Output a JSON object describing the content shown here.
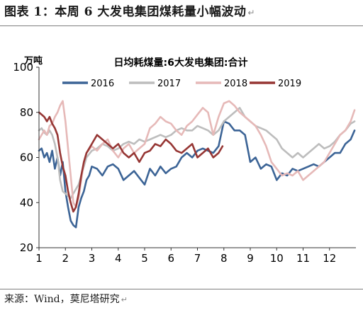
{
  "figure": {
    "label": "图表 1：本周 6 大发电集团煤耗量小幅波动",
    "source": "来源：Wind，莫尼塔研究",
    "paragraph_mark": "↵"
  },
  "chart_data": {
    "type": "line",
    "title": "日均耗煤量:6大发电集团:合计",
    "ylabel": "万吨",
    "xlabel": "",
    "ylim": [
      20,
      100
    ],
    "yticks": [
      20,
      40,
      60,
      80,
      100
    ],
    "xlim": [
      1,
      13
    ],
    "xticks": [
      1,
      2,
      3,
      4,
      5,
      6,
      7,
      8,
      9,
      10,
      11,
      12
    ],
    "grid": false,
    "legend_position": "top",
    "series": [
      {
        "name": "2016",
        "color": "#3c6496",
        "x": [
          1.0,
          1.1,
          1.2,
          1.3,
          1.4,
          1.5,
          1.6,
          1.7,
          1.8,
          1.9,
          2.0,
          2.1,
          2.2,
          2.3,
          2.4,
          2.5,
          2.6,
          2.7,
          2.8,
          2.9,
          3.0,
          3.2,
          3.4,
          3.6,
          3.8,
          4.0,
          4.2,
          4.4,
          4.6,
          4.8,
          5.0,
          5.2,
          5.4,
          5.6,
          5.8,
          6.0,
          6.2,
          6.4,
          6.6,
          6.8,
          7.0,
          7.2,
          7.4,
          7.6,
          7.8,
          8.0,
          8.2,
          8.4,
          8.6,
          8.8,
          9.0,
          9.2,
          9.4,
          9.6,
          9.8,
          10.0,
          10.2,
          10.4,
          10.6,
          10.8,
          11.0,
          11.2,
          11.4,
          11.6,
          11.8,
          12.0,
          12.2,
          12.4,
          12.6,
          12.8,
          12.95
        ],
        "values": [
          63,
          64,
          60,
          62,
          58,
          63,
          55,
          60,
          52,
          58,
          45,
          38,
          32,
          30,
          29,
          38,
          42,
          45,
          50,
          52,
          56,
          55,
          52,
          56,
          57,
          55,
          50,
          52,
          54,
          51,
          48,
          55,
          52,
          56,
          53,
          55,
          56,
          60,
          62,
          60,
          63,
          64,
          63,
          62,
          65,
          76,
          75,
          72,
          72,
          70,
          58,
          60,
          55,
          57,
          56,
          50,
          53,
          52,
          55,
          54,
          55,
          56,
          57,
          56,
          58,
          60,
          62,
          62,
          66,
          68,
          72
        ]
      },
      {
        "name": "2017",
        "color": "#bdbdbd",
        "x": [
          1.0,
          1.1,
          1.2,
          1.3,
          1.4,
          1.5,
          1.6,
          1.7,
          1.8,
          1.9,
          2.0,
          2.1,
          2.2,
          2.3,
          2.4,
          2.5,
          2.6,
          2.7,
          2.8,
          3.0,
          3.2,
          3.4,
          3.6,
          3.8,
          4.0,
          4.2,
          4.4,
          4.6,
          4.8,
          5.0,
          5.2,
          5.4,
          5.6,
          5.8,
          6.0,
          6.2,
          6.4,
          6.6,
          6.8,
          7.0,
          7.2,
          7.4,
          7.6,
          7.8,
          8.0,
          8.2,
          8.4,
          8.6,
          8.8,
          9.0,
          9.2,
          9.4,
          9.6,
          9.8,
          10.0,
          10.2,
          10.4,
          10.6,
          10.8,
          11.0,
          11.2,
          11.4,
          11.6,
          11.8,
          12.0,
          12.2,
          12.4,
          12.6,
          12.8,
          12.95
        ],
        "values": [
          72,
          73,
          71,
          70,
          72,
          70,
          66,
          60,
          50,
          45,
          44,
          43,
          42,
          44,
          46,
          48,
          52,
          56,
          60,
          63,
          64,
          66,
          65,
          63,
          64,
          66,
          67,
          66,
          68,
          67,
          68,
          69,
          70,
          69,
          70,
          72,
          73,
          72,
          72,
          74,
          73,
          72,
          70,
          72,
          76,
          78,
          80,
          82,
          78,
          76,
          74,
          73,
          72,
          70,
          68,
          64,
          62,
          60,
          62,
          60,
          62,
          64,
          66,
          64,
          65,
          67,
          70,
          72,
          75,
          76
        ]
      },
      {
        "name": "2018",
        "color": "#e6b9b8",
        "x": [
          1.0,
          1.1,
          1.2,
          1.3,
          1.4,
          1.5,
          1.6,
          1.7,
          1.8,
          1.9,
          2.0,
          2.1,
          2.2,
          2.3,
          2.4,
          2.5,
          2.6,
          2.7,
          2.8,
          3.0,
          3.2,
          3.4,
          3.6,
          3.8,
          4.0,
          4.2,
          4.4,
          4.6,
          4.8,
          5.0,
          5.2,
          5.4,
          5.6,
          5.8,
          6.0,
          6.2,
          6.4,
          6.6,
          6.8,
          7.0,
          7.2,
          7.4,
          7.6,
          7.8,
          8.0,
          8.2,
          8.4,
          8.6,
          8.8,
          9.0,
          9.2,
          9.4,
          9.6,
          9.8,
          10.0,
          10.2,
          10.4,
          10.6,
          10.8,
          11.0,
          11.2,
          11.4,
          11.6,
          11.8,
          12.0,
          12.2,
          12.4,
          12.6,
          12.8,
          12.95
        ],
        "values": [
          68,
          70,
          72,
          70,
          74,
          75,
          78,
          80,
          83,
          85,
          76,
          64,
          52,
          40,
          38,
          42,
          50,
          58,
          62,
          65,
          63,
          66,
          68,
          63,
          60,
          64,
          66,
          62,
          64,
          66,
          73,
          75,
          78,
          76,
          75,
          72,
          70,
          74,
          76,
          79,
          82,
          80,
          70,
          78,
          84,
          85,
          83,
          80,
          78,
          76,
          74,
          70,
          65,
          58,
          55,
          52,
          53,
          52,
          54,
          50,
          52,
          54,
          56,
          58,
          62,
          66,
          70,
          72,
          76,
          81
        ]
      },
      {
        "name": "2019",
        "color": "#963634",
        "x": [
          1.0,
          1.1,
          1.2,
          1.3,
          1.4,
          1.5,
          1.6,
          1.7,
          1.8,
          1.9,
          2.0,
          2.1,
          2.2,
          2.3,
          2.4,
          2.5,
          2.6,
          2.7,
          2.8,
          3.0,
          3.2,
          3.4,
          3.6,
          3.8,
          4.0,
          4.2,
          4.4,
          4.6,
          4.8,
          5.0,
          5.2,
          5.4,
          5.6,
          5.8,
          6.0,
          6.2,
          6.4,
          6.6,
          6.8,
          7.0,
          7.2,
          7.4,
          7.6,
          7.8,
          7.95
        ],
        "values": [
          80,
          79,
          78,
          76,
          78,
          75,
          73,
          70,
          62,
          56,
          52,
          45,
          40,
          36,
          38,
          44,
          52,
          58,
          62,
          66,
          70,
          68,
          66,
          64,
          66,
          62,
          60,
          62,
          58,
          62,
          63,
          66,
          65,
          68,
          66,
          63,
          62,
          64,
          66,
          60,
          62,
          64,
          60,
          62,
          65
        ]
      }
    ]
  }
}
